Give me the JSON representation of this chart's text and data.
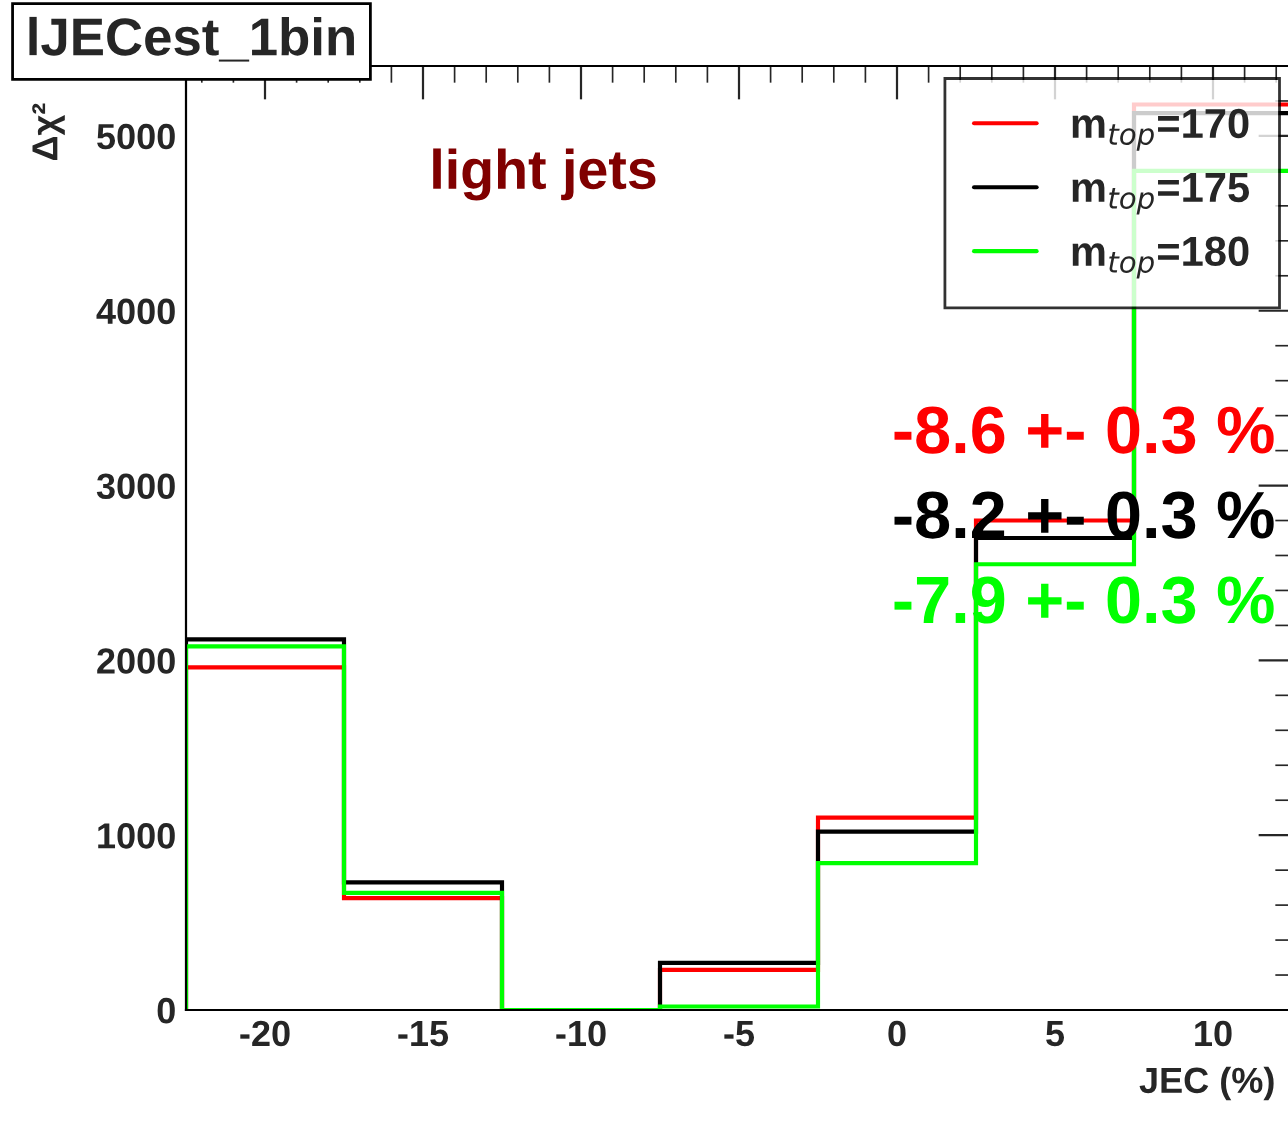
{
  "chart_data": {
    "type": "histogram",
    "title": "lJECest_1bin",
    "xlabel": "JEC (%)",
    "ylabel": "Δχ²",
    "bins": [
      -22.5,
      -17.5,
      -12.5,
      -7.5,
      -2.5,
      2.5,
      7.5,
      12.5
    ],
    "series": [
      {
        "name": "m$_{top}$=170",
        "color": "#ff0000",
        "values": [
          1960,
          640,
          0,
          230,
          1100,
          2800,
          5180
        ]
      },
      {
        "name": "m$_{top}$=175",
        "color": "#000000",
        "values": [
          2120,
          730,
          0,
          270,
          1020,
          2700,
          5130
        ]
      },
      {
        "name": "m$_{top}$=180",
        "color": "#00ff00",
        "values": [
          2080,
          670,
          0,
          20,
          840,
          2550,
          4800
        ]
      }
    ],
    "annotations": [
      "light jets",
      "-8.6 +- 0.3 %",
      "-8.2 +- 0.3 %",
      "-7.9 +- 0.3 %"
    ],
    "xlim": [
      -22.5,
      12.5
    ],
    "ylim": [
      0,
      5400
    ],
    "xticks": [
      -20,
      -15,
      -10,
      -5,
      0,
      5,
      10
    ],
    "yticks": [
      0,
      1000,
      2000,
      3000,
      4000,
      5000
    ],
    "grid": false,
    "legend": "top right"
  }
}
